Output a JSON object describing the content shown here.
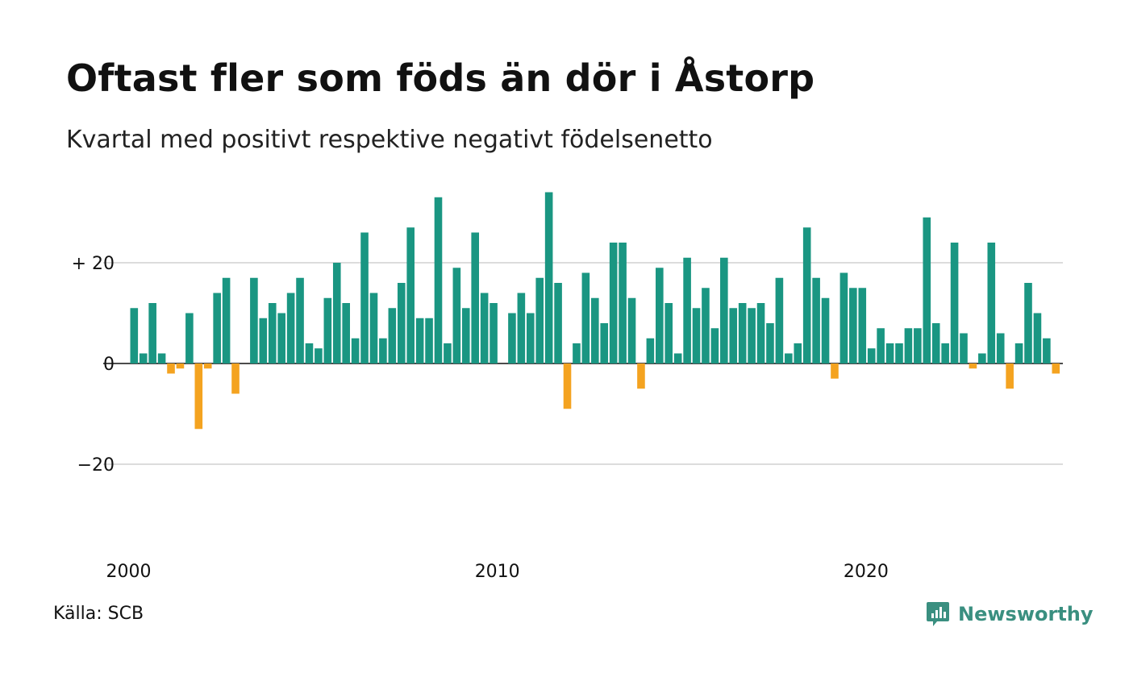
{
  "title": "Oftast fler som föds än dör i Åstorp",
  "subtitle": "Kvartal med positivt respektive negativt födelsenetto",
  "source": "Källa: SCB",
  "brand": {
    "name": "Newsworthy",
    "logo_icon": "newsworthy-logo-icon"
  },
  "colors": {
    "positive": "#1a9682",
    "negative": "#f4a320",
    "grid": "#dcdcdc",
    "baseline": "#111111"
  },
  "chart_data": {
    "type": "bar",
    "title": "Oftast fler som föds än dör i Åstorp",
    "subtitle": "Kvartal med positivt respektive negativt födelsenetto",
    "x_start_year": 2000,
    "x_start_quarter": 1,
    "x_tick_labels": [
      "2000",
      "2010",
      "2020"
    ],
    "x_tick_years": [
      2000,
      2010,
      2020
    ],
    "y_ticks": [
      20,
      0,
      -20
    ],
    "y_tick_labels": [
      "+ 20",
      "0",
      "−20"
    ],
    "ylim": [
      -38,
      38
    ],
    "grid": true,
    "values": [
      11,
      2,
      12,
      2,
      -2,
      -1,
      10,
      -13,
      -1,
      14,
      17,
      -6,
      0,
      17,
      9,
      12,
      10,
      14,
      17,
      4,
      3,
      13,
      20,
      12,
      5,
      26,
      14,
      5,
      11,
      16,
      27,
      9,
      9,
      33,
      4,
      19,
      11,
      26,
      14,
      12,
      0,
      10,
      14,
      10,
      17,
      34,
      16,
      -9,
      4,
      18,
      13,
      8,
      24,
      24,
      13,
      -5,
      5,
      19,
      12,
      2,
      21,
      11,
      15,
      7,
      21,
      11,
      12,
      11,
      12,
      8,
      17,
      2,
      4,
      27,
      17,
      13,
      -3,
      18,
      15,
      15,
      3,
      7,
      4,
      4,
      7,
      7,
      29,
      8,
      4,
      24,
      6,
      -1,
      2,
      24,
      6,
      -5,
      4,
      16,
      10,
      5,
      -2
    ]
  }
}
